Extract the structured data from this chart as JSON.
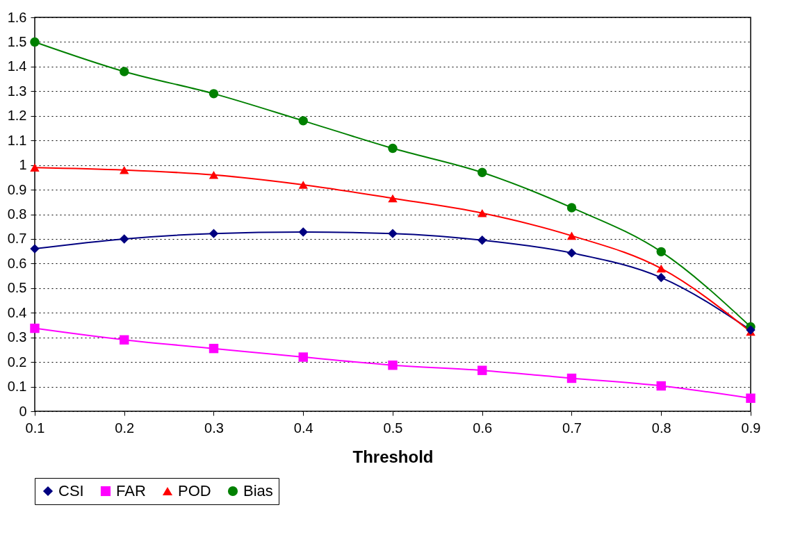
{
  "chart_data": {
    "type": "line",
    "xlabel": "Threshold",
    "x": [
      0.1,
      0.2,
      0.3,
      0.4,
      0.5,
      0.6,
      0.7,
      0.8,
      0.9
    ],
    "series": [
      {
        "name": "CSI",
        "color": "#000080",
        "marker": "diamond",
        "values": [
          0.66,
          0.7,
          0.722,
          0.728,
          0.722,
          0.695,
          0.643,
          0.543,
          0.33
        ]
      },
      {
        "name": "FAR",
        "color": "#ff00ff",
        "marker": "square",
        "values": [
          0.337,
          0.29,
          0.255,
          0.22,
          0.187,
          0.166,
          0.134,
          0.103,
          0.053
        ]
      },
      {
        "name": "POD",
        "color": "#ff0000",
        "marker": "triangle",
        "values": [
          0.99,
          0.98,
          0.96,
          0.92,
          0.865,
          0.805,
          0.713,
          0.58,
          0.323
        ]
      },
      {
        "name": "Bias",
        "color": "#008000",
        "marker": "circle",
        "values": [
          1.5,
          1.38,
          1.29,
          1.18,
          1.068,
          0.97,
          0.827,
          0.648,
          0.343
        ]
      }
    ],
    "xlim": [
      0.1,
      0.9
    ],
    "xticks": [
      0.1,
      0.2,
      0.3,
      0.4,
      0.5,
      0.6,
      0.7,
      0.8,
      0.9
    ],
    "ylim": [
      0,
      1.6
    ],
    "yticks": [
      0,
      0.1,
      0.2,
      0.3,
      0.4,
      0.5,
      0.6,
      0.7,
      0.8,
      0.9,
      1,
      1.1,
      1.2,
      1.3,
      1.4,
      1.5,
      1.6
    ],
    "grid": "y",
    "legend": "bottom",
    "line_style": "solid"
  }
}
